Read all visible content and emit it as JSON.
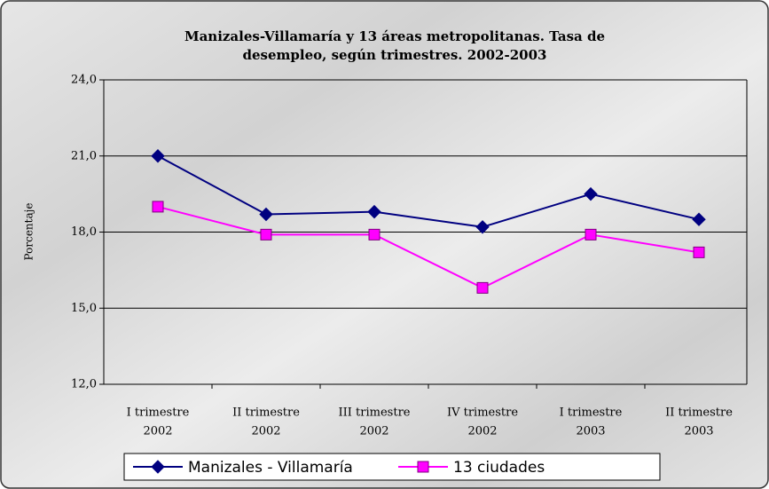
{
  "chart_data": {
    "type": "line",
    "title": [
      "Manizales-Villamaría y 13 áreas metropolitanas. Tasa de",
      "desempleo, según trimestres. 2002-2003"
    ],
    "y_label": "Porcentaje",
    "categories": [
      [
        "I trimestre",
        "2002"
      ],
      [
        "II trimestre",
        "2002"
      ],
      [
        "III trimestre",
        "2002"
      ],
      [
        "IV trimestre",
        "2002"
      ],
      [
        "I trimestre",
        "2003"
      ],
      [
        "II trimestre",
        "2003"
      ]
    ],
    "series": [
      {
        "name": "Manizales - Villamaría",
        "color": "#000080",
        "marker": "diamond",
        "values": [
          21.0,
          18.7,
          18.8,
          18.2,
          19.5,
          18.5
        ]
      },
      {
        "name": "13 ciudades",
        "color": "#ff00ff",
        "marker": "square",
        "values": [
          19.0,
          17.9,
          17.9,
          15.8,
          17.9,
          17.2
        ]
      }
    ],
    "ylim": [
      12,
      24
    ],
    "yticks": [
      {
        "value": 12,
        "label": "12,0"
      },
      {
        "value": 15,
        "label": "15,0"
      },
      {
        "value": 18,
        "label": "18,0"
      },
      {
        "value": 21,
        "label": "21,0"
      },
      {
        "value": 24,
        "label": "24,0"
      }
    ],
    "grid": true
  }
}
